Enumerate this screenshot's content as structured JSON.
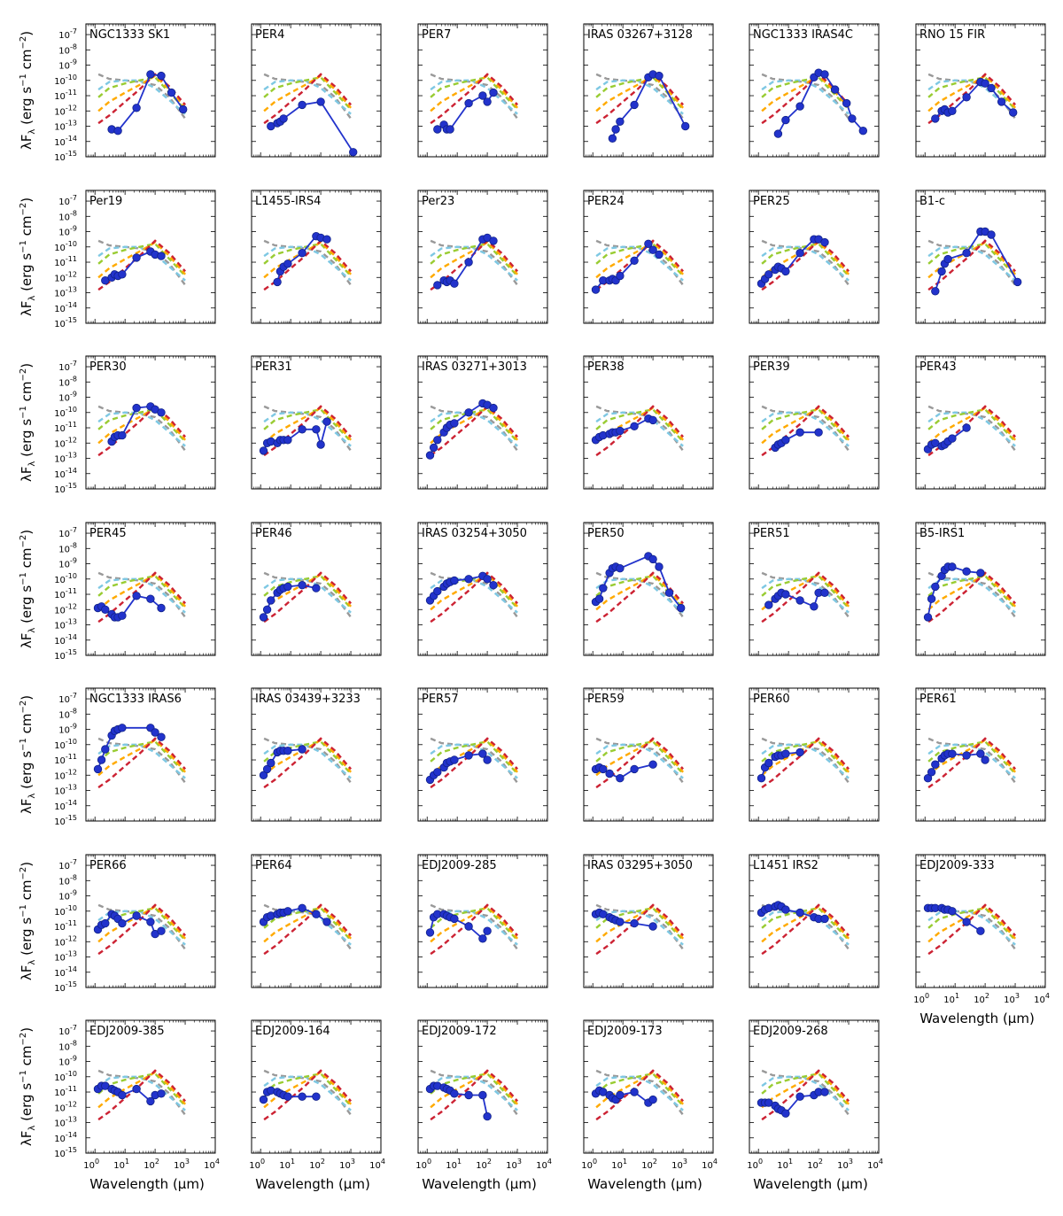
{
  "figure": {
    "xlabel": "Wavelength (μm)",
    "ylabel": "λF",
    "ylabel_sub": "λ",
    "ylabel_units": "(erg s",
    "ylabel_units_sup1": "−1",
    "ylabel_units_mid": " cm",
    "ylabel_units_sup2": "−2",
    "ylabel_units_end": ")",
    "xticks": [
      0,
      1,
      2,
      3,
      4
    ],
    "yticks": [
      -15,
      -14,
      -13,
      -12,
      -11,
      -10,
      -9,
      -8,
      -7
    ]
  },
  "chart_data": {
    "type": "scatter",
    "xscale": "log",
    "yscale": "log",
    "xlim": [
      0.5,
      10000
    ],
    "ylim": [
      1e-15,
      5e-07
    ],
    "grid": false,
    "marker_color": "#2233cc",
    "template_colors": [
      "#999999",
      "#7ec8e3",
      "#99cc33",
      "#ffaa00",
      "#cc2233"
    ],
    "templates": [
      {
        "color": "#999999",
        "x": [
          1.3,
          3,
          10,
          30,
          100,
          300,
          1000
        ],
        "y": [
          -9.6,
          -9.9,
          -10.0,
          -10.1,
          -10.3,
          -11.1,
          -12.5
        ]
      },
      {
        "color": "#7ec8e3",
        "x": [
          1.3,
          3,
          10,
          30,
          100,
          300,
          1000
        ],
        "y": [
          -10.6,
          -10.1,
          -10.0,
          -10.0,
          -10.5,
          -11.3,
          -12.2
        ]
      },
      {
        "color": "#99cc33",
        "x": [
          1.3,
          3,
          10,
          30,
          100,
          300,
          1000
        ],
        "y": [
          -11.1,
          -10.5,
          -10.2,
          -10.0,
          -9.8,
          -10.8,
          -11.9
        ]
      },
      {
        "color": "#ffaa00",
        "x": [
          1.3,
          3,
          10,
          30,
          100,
          300,
          1000
        ],
        "y": [
          -12.0,
          -11.4,
          -10.8,
          -10.3,
          -9.7,
          -10.6,
          -11.8
        ]
      },
      {
        "color": "#cc2233",
        "x": [
          1.3,
          3,
          10,
          30,
          100,
          300,
          1000
        ],
        "y": [
          -12.8,
          -12.3,
          -11.4,
          -10.6,
          -9.6,
          -10.4,
          -11.6
        ]
      }
    ],
    "panels": [
      {
        "title": "NGC1333 SK1",
        "x": [
          3.6,
          5.8,
          24,
          70,
          160,
          350,
          850
        ],
        "y": [
          -13.2,
          -13.3,
          -11.8,
          -9.6,
          -9.7,
          -10.8,
          -11.9
        ]
      },
      {
        "title": "PER4",
        "x": [
          2.2,
          3.6,
          4.5,
          5.8,
          24,
          100,
          1200
        ],
        "y": [
          -13.0,
          -12.8,
          -12.7,
          -12.5,
          -11.6,
          -11.4,
          -14.7
        ]
      },
      {
        "title": "PER7",
        "x": [
          2.2,
          3.6,
          4.5,
          5.8,
          24,
          70,
          100,
          160
        ],
        "y": [
          -13.2,
          -12.9,
          -13.2,
          -13.2,
          -11.5,
          -11.0,
          -11.4,
          -10.8
        ]
      },
      {
        "title": "IRAS 03267+3128",
        "x": [
          4.5,
          5.8,
          8,
          24,
          70,
          100,
          160,
          1200
        ],
        "y": [
          -13.8,
          -13.2,
          -12.7,
          -11.6,
          -9.8,
          -9.6,
          -9.7,
          -13.0
        ]
      },
      {
        "title": "NGC1333 IRAS4C",
        "x": [
          4.5,
          8,
          24,
          70,
          100,
          160,
          350,
          850,
          1300,
          3000
        ],
        "y": [
          -13.5,
          -12.6,
          -11.7,
          -9.8,
          -9.5,
          -9.6,
          -10.6,
          -11.5,
          -12.5,
          -13.3
        ]
      },
      {
        "title": "RNO 15 FIR",
        "x": [
          2.2,
          3.6,
          4.5,
          5.8,
          8,
          24,
          70,
          100,
          160,
          350,
          850
        ],
        "y": [
          -12.5,
          -12.0,
          -11.9,
          -12.1,
          -12.0,
          -11.1,
          -10.1,
          -10.2,
          -10.5,
          -11.4,
          -12.1
        ]
      },
      {
        "title": "Per19",
        "x": [
          2.2,
          3.6,
          4.5,
          5.8,
          8,
          24,
          70,
          100,
          160
        ],
        "y": [
          -12.2,
          -12.0,
          -11.8,
          -11.9,
          -11.8,
          -10.7,
          -10.3,
          -10.5,
          -10.6
        ]
      },
      {
        "title": "L1455-IRS4",
        "x": [
          3.6,
          4.5,
          5.8,
          8,
          24,
          70,
          100,
          160
        ],
        "y": [
          -12.3,
          -11.6,
          -11.3,
          -11.1,
          -10.4,
          -9.3,
          -9.4,
          -9.5
        ]
      },
      {
        "title": "Per23",
        "x": [
          2.2,
          3.6,
          4.5,
          5.8,
          8,
          24,
          70,
          100,
          160
        ],
        "y": [
          -12.5,
          -12.2,
          -12.3,
          -12.2,
          -12.4,
          -11.0,
          -9.5,
          -9.4,
          -9.6
        ]
      },
      {
        "title": "PER24",
        "x": [
          1.25,
          2.2,
          3.6,
          4.5,
          5.8,
          8,
          24,
          70,
          100,
          160
        ],
        "y": [
          -12.8,
          -12.2,
          -12.2,
          -12.1,
          -12.2,
          -11.9,
          -10.9,
          -9.8,
          -10.2,
          -10.5
        ]
      },
      {
        "title": "PER25",
        "x": [
          1.25,
          1.65,
          2.2,
          3.6,
          4.5,
          5.8,
          8,
          24,
          70,
          100,
          160
        ],
        "y": [
          -12.4,
          -12.1,
          -11.8,
          -11.5,
          -11.3,
          -11.4,
          -11.6,
          -10.4,
          -9.5,
          -9.5,
          -9.7
        ]
      },
      {
        "title": "B1-c",
        "x": [
          2.2,
          3.6,
          4.5,
          5.8,
          24,
          70,
          100,
          160,
          1200
        ],
        "y": [
          -12.9,
          -11.6,
          -11.1,
          -10.8,
          -10.4,
          -9.0,
          -9.0,
          -9.2,
          -12.3
        ]
      },
      {
        "title": "PER30",
        "x": [
          3.6,
          4.5,
          5.8,
          8,
          24,
          70,
          100,
          160
        ],
        "y": [
          -11.9,
          -11.6,
          -11.5,
          -11.5,
          -9.7,
          -9.6,
          -9.8,
          -10.0
        ]
      },
      {
        "title": "PER31",
        "x": [
          1.25,
          1.65,
          2.2,
          3.6,
          4.5,
          5.8,
          8,
          24,
          70,
          100,
          160
        ],
        "y": [
          -12.5,
          -12.0,
          -11.9,
          -12.0,
          -11.8,
          -11.8,
          -11.8,
          -11.1,
          -11.1,
          -12.1,
          -10.6
        ]
      },
      {
        "title": "IRAS 03271+3013",
        "x": [
          1.25,
          1.65,
          2.2,
          3.6,
          4.5,
          5.8,
          8,
          24,
          70,
          100,
          160
        ],
        "y": [
          -12.8,
          -12.3,
          -11.8,
          -11.3,
          -11.0,
          -10.8,
          -10.7,
          -10.0,
          -9.4,
          -9.5,
          -9.7
        ]
      },
      {
        "title": "PER38",
        "x": [
          1.25,
          1.65,
          2.2,
          3.6,
          4.5,
          5.8,
          8,
          24,
          70,
          100
        ],
        "y": [
          -11.8,
          -11.6,
          -11.5,
          -11.4,
          -11.3,
          -11.3,
          -11.2,
          -10.9,
          -10.4,
          -10.5
        ]
      },
      {
        "title": "PER39",
        "x": [
          3.6,
          4.5,
          5.8,
          8,
          24,
          100
        ],
        "y": [
          -12.3,
          -12.1,
          -12.0,
          -11.8,
          -11.3,
          -11.3
        ]
      },
      {
        "title": "PER43",
        "x": [
          1.25,
          1.65,
          2.2,
          3.6,
          4.5,
          5.8,
          8,
          24
        ],
        "y": [
          -12.4,
          -12.1,
          -12.0,
          -12.2,
          -12.1,
          -11.9,
          -11.7,
          -11.0
        ]
      },
      {
        "title": "PER45",
        "x": [
          1.25,
          1.65,
          2.2,
          3.6,
          4.5,
          5.8,
          8,
          24,
          70,
          160
        ],
        "y": [
          -11.9,
          -11.8,
          -12.0,
          -12.3,
          -12.5,
          -12.5,
          -12.4,
          -11.1,
          -11.3,
          -11.9
        ]
      },
      {
        "title": "PER46",
        "x": [
          1.25,
          1.65,
          2.2,
          3.6,
          4.5,
          5.8,
          8,
          24,
          70
        ],
        "y": [
          -12.5,
          -12.0,
          -11.4,
          -10.9,
          -10.7,
          -10.6,
          -10.5,
          -10.4,
          -10.6
        ]
      },
      {
        "title": "IRAS 03254+3050",
        "x": [
          1.25,
          1.65,
          2.2,
          3.6,
          4.5,
          5.8,
          8,
          24,
          70,
          100,
          160
        ],
        "y": [
          -11.4,
          -11.1,
          -10.8,
          -10.5,
          -10.3,
          -10.2,
          -10.1,
          -10.0,
          -9.8,
          -10.0,
          -10.4
        ]
      },
      {
        "title": "PER50",
        "x": [
          1.25,
          1.65,
          2.2,
          3.6,
          4.5,
          5.8,
          8,
          70,
          100,
          160,
          350,
          850
        ],
        "y": [
          -11.5,
          -11.3,
          -10.6,
          -9.6,
          -9.3,
          -9.2,
          -9.3,
          -8.5,
          -8.7,
          -9.2,
          -10.9,
          -11.9
        ]
      },
      {
        "title": "PER51",
        "x": [
          2.2,
          3.6,
          4.5,
          5.8,
          8,
          24,
          70,
          100,
          160
        ],
        "y": [
          -11.7,
          -11.3,
          -11.1,
          -10.9,
          -11.0,
          -11.4,
          -11.8,
          -10.9,
          -10.9
        ]
      },
      {
        "title": "B5-IRS1",
        "x": [
          1.25,
          1.65,
          2.2,
          3.6,
          4.5,
          5.8,
          8,
          24,
          70
        ],
        "y": [
          -12.5,
          -11.3,
          -10.5,
          -9.8,
          -9.4,
          -9.2,
          -9.2,
          -9.5,
          -9.6
        ]
      },
      {
        "title": "NGC1333 IRAS6",
        "x": [
          1.25,
          1.65,
          2.2,
          3.6,
          4.5,
          5.8,
          8,
          70,
          100,
          160
        ],
        "y": [
          -11.6,
          -11.0,
          -10.3,
          -9.4,
          -9.1,
          -9.0,
          -8.9,
          -8.9,
          -9.2,
          -9.5
        ]
      },
      {
        "title": "IRAS 03439+3233",
        "x": [
          1.25,
          1.65,
          2.2,
          3.6,
          4.5,
          5.8,
          8,
          24
        ],
        "y": [
          -12.0,
          -11.6,
          -11.2,
          -10.5,
          -10.4,
          -10.4,
          -10.4,
          -10.3
        ]
      },
      {
        "title": "PER57",
        "x": [
          1.25,
          1.65,
          2.2,
          3.6,
          4.5,
          5.8,
          8,
          24,
          70,
          100
        ],
        "y": [
          -12.3,
          -12.0,
          -11.8,
          -11.5,
          -11.2,
          -11.1,
          -11.0,
          -10.7,
          -10.6,
          -11.0
        ]
      },
      {
        "title": "PER59",
        "x": [
          1.25,
          1.65,
          2.2,
          3.6,
          8,
          24,
          100
        ],
        "y": [
          -11.6,
          -11.5,
          -11.6,
          -11.9,
          -12.2,
          -11.6,
          -11.3
        ]
      },
      {
        "title": "PER60",
        "x": [
          1.25,
          1.65,
          2.2,
          3.6,
          4.5,
          5.8,
          8,
          24
        ],
        "y": [
          -12.2,
          -11.5,
          -11.2,
          -10.8,
          -10.7,
          -10.7,
          -10.6,
          -10.5
        ]
      },
      {
        "title": "PER61",
        "x": [
          1.25,
          1.65,
          2.2,
          3.6,
          4.5,
          5.8,
          8,
          24,
          70,
          100
        ],
        "y": [
          -12.2,
          -11.8,
          -11.3,
          -10.9,
          -10.7,
          -10.6,
          -10.6,
          -10.7,
          -10.6,
          -11.0
        ]
      },
      {
        "title": "PER66",
        "x": [
          1.25,
          1.65,
          2.2,
          3.6,
          4.5,
          5.8,
          8,
          24,
          70,
          100,
          160
        ],
        "y": [
          -11.2,
          -10.9,
          -10.8,
          -10.2,
          -10.3,
          -10.5,
          -10.8,
          -10.3,
          -10.7,
          -11.5,
          -11.3
        ]
      },
      {
        "title": "PER64",
        "x": [
          1.25,
          1.65,
          2.2,
          3.6,
          4.5,
          5.8,
          8,
          24,
          70,
          160
        ],
        "y": [
          -10.7,
          -10.4,
          -10.3,
          -10.2,
          -10.1,
          -10.1,
          -10.0,
          -9.8,
          -10.2,
          -10.7
        ]
      },
      {
        "title": "EDJ2009-285",
        "x": [
          1.25,
          1.65,
          2.2,
          3.6,
          4.5,
          5.8,
          8,
          24,
          70,
          100
        ],
        "y": [
          -11.4,
          -10.4,
          -10.2,
          -10.2,
          -10.3,
          -10.4,
          -10.5,
          -11.0,
          -11.8,
          -11.3
        ]
      },
      {
        "title": "IRAS 03295+3050",
        "x": [
          1.25,
          1.65,
          2.2,
          3.6,
          4.5,
          5.8,
          8,
          24,
          100
        ],
        "y": [
          -10.2,
          -10.1,
          -10.2,
          -10.4,
          -10.5,
          -10.6,
          -10.7,
          -10.8,
          -11.0
        ]
      },
      {
        "title": "L1451 IRS2",
        "x": [
          1.25,
          1.65,
          2.2,
          3.6,
          4.5,
          5.8,
          8,
          24,
          70,
          100,
          160
        ],
        "y": [
          -10.1,
          -9.9,
          -9.8,
          -9.7,
          -9.6,
          -9.7,
          -9.9,
          -10.1,
          -10.4,
          -10.5,
          -10.5
        ]
      },
      {
        "title": "EDJ2009-333",
        "x": [
          1.25,
          1.65,
          2.2,
          3.6,
          4.5,
          5.8,
          8,
          24,
          70
        ],
        "y": [
          -9.8,
          -9.8,
          -9.8,
          -9.8,
          -9.9,
          -9.9,
          -10.0,
          -10.7,
          -11.3
        ]
      },
      {
        "title": "EDJ2009-385",
        "x": [
          1.25,
          1.65,
          2.2,
          3.6,
          4.5,
          5.8,
          8,
          24,
          70,
          100,
          160
        ],
        "y": [
          -10.8,
          -10.6,
          -10.6,
          -10.8,
          -10.9,
          -11.0,
          -11.2,
          -10.8,
          -11.6,
          -11.2,
          -11.1
        ]
      },
      {
        "title": "EDJ2009-164",
        "x": [
          1.25,
          1.65,
          2.2,
          3.6,
          4.5,
          5.8,
          8,
          24,
          70
        ],
        "y": [
          -11.5,
          -11.0,
          -10.9,
          -11.0,
          -11.1,
          -11.2,
          -11.3,
          -11.3,
          -11.3
        ]
      },
      {
        "title": "EDJ2009-172",
        "x": [
          1.25,
          1.65,
          2.2,
          3.6,
          4.5,
          5.8,
          8,
          24,
          70,
          100
        ],
        "y": [
          -10.8,
          -10.6,
          -10.6,
          -10.7,
          -10.8,
          -10.9,
          -11.1,
          -11.2,
          -11.2,
          -12.6
        ]
      },
      {
        "title": "EDJ2009-173",
        "x": [
          1.25,
          1.65,
          2.2,
          3.6,
          4.5,
          5.8,
          8,
          24,
          70,
          100
        ],
        "y": [
          -11.1,
          -10.9,
          -11.0,
          -11.2,
          -11.4,
          -11.5,
          -11.2,
          -11.0,
          -11.7,
          -11.5
        ]
      },
      {
        "title": "EDJ2009-268",
        "x": [
          1.25,
          1.65,
          2.2,
          3.6,
          4.5,
          5.8,
          8,
          24,
          70,
          100,
          160
        ],
        "y": [
          -11.7,
          -11.7,
          -11.7,
          -11.9,
          -12.1,
          -12.2,
          -12.4,
          -11.3,
          -11.2,
          -11.0,
          -11.0
        ]
      }
    ]
  }
}
